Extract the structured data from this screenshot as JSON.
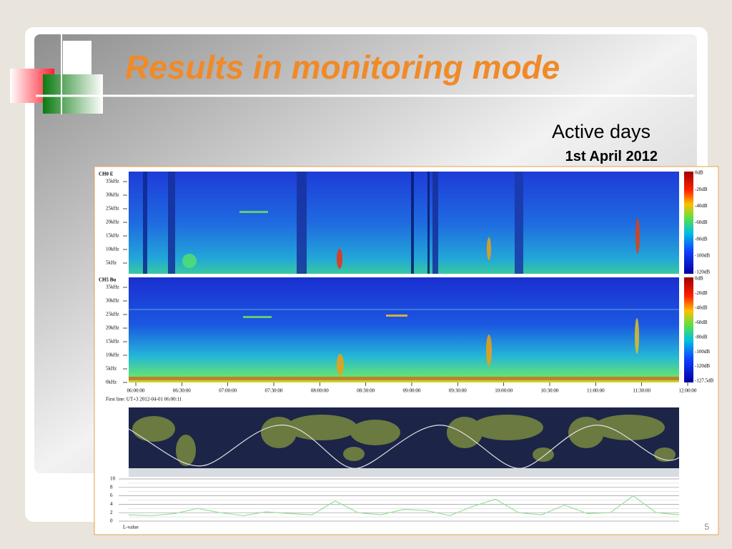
{
  "title": "Results in monitoring mode",
  "subtitle": "Active days",
  "date": "1st April 2012",
  "figure": {
    "panels": [
      {
        "channel": "CH0 E",
        "freq_ticks": [
          "35kHz",
          "30kHz",
          "25kHz",
          "20kHz",
          "15kHz",
          "10kHz",
          "5kHz"
        ],
        "colorbar_ticks": [
          "0dB",
          "-20dB",
          "-40dB",
          "-60dB",
          "-80dB",
          "-100dB",
          "-120dB"
        ]
      },
      {
        "channel": "CH5 Bu",
        "freq_ticks": [
          "35kHz",
          "30kHz",
          "25kHz",
          "20kHz",
          "15kHz",
          "10kHz",
          "5kHz",
          "0kHz"
        ],
        "colorbar_ticks": [
          "0dB",
          "-20dB",
          "-40dB",
          "-60dB",
          "-80dB",
          "-100dB",
          "-120dB",
          "-127.5dB"
        ]
      }
    ],
    "time_ticks": [
      "06:00:00",
      "06:30:00",
      "07:00:00",
      "07:30:00",
      "08:00:00",
      "08:30:00",
      "09:00:00",
      "09:30:00",
      "10:00:00",
      "10:30:00",
      "11:00:00",
      "11:30:00",
      "12:00:00"
    ],
    "first_line": "First line: UT+3 2012-04-01 06:00:11",
    "lvalue": {
      "label": "L-value",
      "ylim": [
        0,
        10
      ],
      "yticks": [
        0,
        2,
        4,
        6,
        8,
        10
      ],
      "values": [
        1.5,
        1.3,
        1.8,
        3.0,
        2.0,
        1.3,
        2.2,
        1.8,
        1.5,
        4.8,
        2.0,
        1.5,
        2.8,
        2.5,
        1.3,
        3.5,
        5.2,
        2.0,
        1.5,
        3.8,
        1.8,
        2.0,
        6.0,
        2.0,
        1.5
      ]
    }
  },
  "page_number": "5"
}
